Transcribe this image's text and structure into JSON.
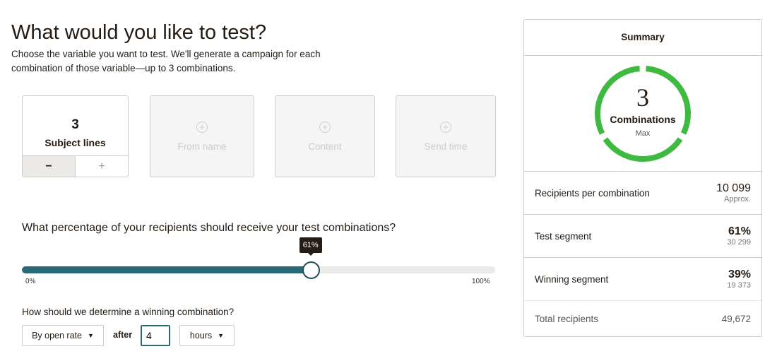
{
  "header": {
    "title": "What would you like to test?",
    "description": "Choose the variable you want to test. We'll generate a campaign for each combination of those variable—up to 3 combinations."
  },
  "variables": [
    {
      "count": "3",
      "label": "Subject lines",
      "active": true,
      "decrement": "−",
      "increment": "+"
    },
    {
      "label": "From name",
      "icon": "plus-circle-icon"
    },
    {
      "label": "Content",
      "icon": "plus-circle-icon"
    },
    {
      "label": "Send time",
      "icon": "plus-circle-icon"
    }
  ],
  "slider": {
    "question": "What percentage of your recipients should receive your test combinations?",
    "value": 61,
    "tooltip": "61%",
    "min_label": "0%",
    "max_label": "100%",
    "fill_color": "#2a6a78"
  },
  "winner": {
    "question": "How should we determine a winning combination?",
    "metric": "By open rate",
    "after_label": "after",
    "duration": "4",
    "unit": "hours"
  },
  "summary": {
    "title": "Summary",
    "combinations": "3",
    "combinations_label": "Combinations",
    "combinations_sub": "Max",
    "ring_color": "#3dba3f",
    "rows": [
      {
        "label": "Recipients per combination",
        "value": "10 099",
        "sub": "Approx."
      },
      {
        "label": "Test segment",
        "value": "61%",
        "sub": "30 299"
      },
      {
        "label": "Winning segment",
        "value": "39%",
        "sub": "19 373"
      },
      {
        "label": "Total recipients",
        "value": "49,672"
      }
    ]
  }
}
